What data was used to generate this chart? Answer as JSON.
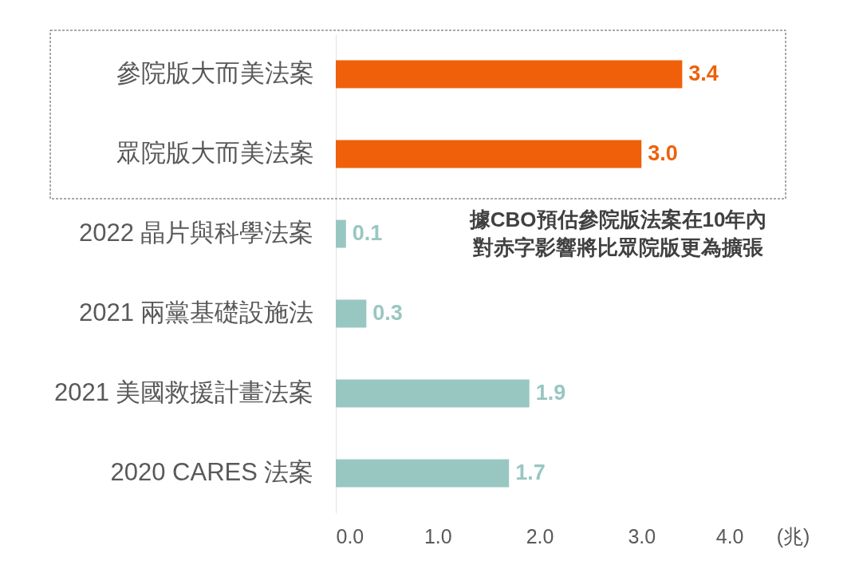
{
  "chart_data": {
    "type": "bar",
    "orientation": "horizontal",
    "categories": [
      "參院版大而美法案",
      "眾院版大而美法案",
      "2022 晶片與科學法案",
      "2021 兩黨基礎設施法",
      "2021 美國救援計畫法案",
      "2020 CARES 法案"
    ],
    "values": [
      3.4,
      3.0,
      0.1,
      0.3,
      1.9,
      1.7
    ],
    "value_labels": [
      "3.4",
      "3.0",
      "0.1",
      "0.3",
      "1.9",
      "1.7"
    ],
    "colors": [
      "#f0600a",
      "#f0600a",
      "#98c7c2",
      "#98c7c2",
      "#98c7c2",
      "#98c7c2"
    ],
    "xlabel": "(兆)",
    "xlim": [
      0,
      4
    ],
    "xticks": [
      {
        "value": 0,
        "label": "0.0"
      },
      {
        "value": 1,
        "label": "1.0"
      },
      {
        "value": 2,
        "label": "2.0"
      },
      {
        "value": 3,
        "label": "3.0"
      },
      {
        "value": 4,
        "label": "4.0"
      }
    ],
    "annotations": [
      "據CBO預估參院版法案在10年內",
      "對赤字影響將比眾院版更為擴張"
    ]
  }
}
